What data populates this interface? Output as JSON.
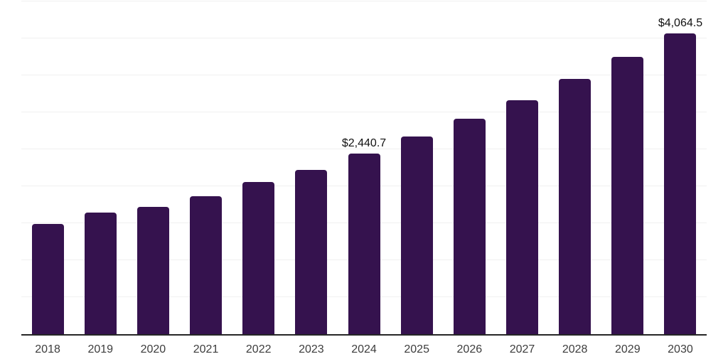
{
  "chart_data": {
    "type": "bar",
    "title": "",
    "xlabel": "",
    "ylabel": "",
    "categories": [
      "2018",
      "2019",
      "2020",
      "2021",
      "2022",
      "2023",
      "2024",
      "2025",
      "2026",
      "2027",
      "2028",
      "2029",
      "2030"
    ],
    "values": [
      1495,
      1640,
      1720,
      1870,
      2055,
      2225,
      2440.7,
      2670,
      2910,
      3160,
      3450,
      3750,
      4064.5
    ],
    "value_labels": [
      "",
      "",
      "",
      "",
      "",
      "",
      "$2,440.7",
      "",
      "",
      "",
      "",
      "",
      "$4,064.5"
    ],
    "ylim": [
      0,
      4500
    ],
    "gridline_step": 500,
    "grid": "horizontal-only",
    "y_axis_tick_labels_visible": false,
    "legend": "none"
  },
  "style": {
    "bar_color": "#35124E",
    "grid_color": "#f0f0f0",
    "axis_color": "#262626",
    "tick_label_color": "#3d3d3d",
    "data_label_color": "#111111",
    "background_color": "#ffffff"
  }
}
